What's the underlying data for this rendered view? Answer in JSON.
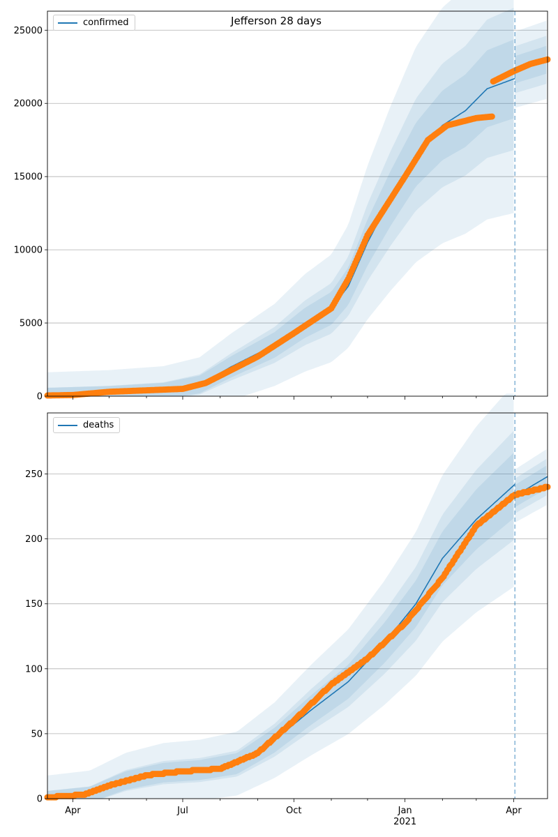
{
  "figure": {
    "title": "Jefferson 28 days"
  },
  "colors": {
    "model": "#1f77b4",
    "observed": "#ff7f0e",
    "band": "#1f77b4"
  },
  "chart_data": [
    {
      "type": "line",
      "name": "confirmed",
      "legend": {
        "label": "confirmed",
        "placement": "upper-left"
      },
      "x_axis": {
        "range": [
          "2020-03-11",
          "2021-04-29"
        ],
        "major_ticks": [
          "Apr",
          "Jul",
          "Oct",
          "Jan",
          "Apr"
        ],
        "year_label": "2021"
      },
      "ylim": [
        0,
        26300
      ],
      "yticks": [
        0,
        5000,
        10000,
        15000,
        20000,
        25000
      ],
      "grid": "horizontal",
      "forecast_start": "2021-04-02",
      "model_knots": [
        [
          "2020-03-11",
          40
        ],
        [
          "2020-05-01",
          150
        ],
        [
          "2020-06-15",
          350
        ],
        [
          "2020-07-15",
          800
        ],
        [
          "2020-08-10",
          2000
        ],
        [
          "2020-09-15",
          3500
        ],
        [
          "2020-10-10",
          5000
        ],
        [
          "2020-11-01",
          6000
        ],
        [
          "2020-11-15",
          7500
        ],
        [
          "2020-12-01",
          10500
        ],
        [
          "2020-12-20",
          13500
        ],
        [
          "2021-01-10",
          16500
        ],
        [
          "2021-02-01",
          18500
        ],
        [
          "2021-02-20",
          19500
        ],
        [
          "2021-03-10",
          21000
        ],
        [
          "2021-04-02",
          21700
        ]
      ],
      "forecast_knots": [
        [
          "2021-04-02",
          22300
        ],
        [
          "2021-04-29",
          23000
        ]
      ],
      "observed_segments": [
        [
          [
            "2020-03-11",
            50
          ],
          [
            "2020-04-01",
            80
          ],
          [
            "2020-05-01",
            300
          ],
          [
            "2020-06-01",
            400
          ],
          [
            "2020-07-01",
            500
          ],
          [
            "2020-07-20",
            900
          ],
          [
            "2020-08-01",
            1400
          ],
          [
            "2020-09-01",
            2700
          ],
          [
            "2020-10-01",
            4300
          ],
          [
            "2020-11-01",
            6000
          ],
          [
            "2020-11-15",
            8000
          ],
          [
            "2020-12-01",
            11000
          ],
          [
            "2021-01-01",
            15000
          ],
          [
            "2021-01-20",
            17500
          ],
          [
            "2021-02-05",
            18500
          ],
          [
            "2021-03-01",
            19000
          ],
          [
            "2021-03-14",
            19100
          ]
        ],
        [
          [
            "2021-03-15",
            21500
          ],
          [
            "2021-04-01",
            22200
          ],
          [
            "2021-04-15",
            22700
          ],
          [
            "2021-04-29",
            23000
          ]
        ]
      ],
      "band_widths": [
        0.35,
        0.2,
        0.1
      ]
    },
    {
      "type": "line",
      "name": "deaths",
      "legend": {
        "label": "deaths",
        "placement": "upper-left"
      },
      "x_axis": {
        "range": [
          "2020-03-11",
          "2021-04-29"
        ],
        "major_ticks": [
          "Apr",
          "Jul",
          "Oct",
          "Jan",
          "Apr"
        ],
        "year_label": "2021"
      },
      "ylim": [
        0,
        297
      ],
      "yticks": [
        0,
        50,
        100,
        150,
        200,
        250
      ],
      "grid": "horizontal",
      "forecast_start": "2021-04-02",
      "model_knots": [
        [
          "2020-03-11",
          0
        ],
        [
          "2020-04-15",
          3
        ],
        [
          "2020-05-15",
          14
        ],
        [
          "2020-06-15",
          20
        ],
        [
          "2020-07-15",
          22
        ],
        [
          "2020-08-15",
          27
        ],
        [
          "2020-09-15",
          45
        ],
        [
          "2020-10-15",
          68
        ],
        [
          "2020-11-15",
          90
        ],
        [
          "2020-12-15",
          120
        ],
        [
          "2021-01-10",
          150
        ],
        [
          "2021-02-01",
          185
        ],
        [
          "2021-03-01",
          215
        ],
        [
          "2021-04-02",
          242
        ]
      ],
      "forecast_knots": [
        [
          "2021-04-02",
          233
        ],
        [
          "2021-04-29",
          248
        ]
      ],
      "observed_segments": [
        [
          [
            "2020-03-11",
            1
          ],
          [
            "2020-04-10",
            3
          ],
          [
            "2020-05-01",
            10
          ],
          [
            "2020-06-01",
            18
          ],
          [
            "2020-07-01",
            21
          ],
          [
            "2020-08-01",
            23
          ],
          [
            "2020-09-01",
            35
          ],
          [
            "2020-10-01",
            60
          ],
          [
            "2020-11-01",
            88
          ],
          [
            "2020-12-01",
            108
          ],
          [
            "2021-01-01",
            135
          ],
          [
            "2021-02-01",
            170
          ],
          [
            "2021-03-01",
            210
          ],
          [
            "2021-04-02",
            234
          ],
          [
            "2021-04-29",
            240
          ]
        ]
      ],
      "band_widths": [
        0.25,
        0.15,
        0.08
      ]
    }
  ]
}
